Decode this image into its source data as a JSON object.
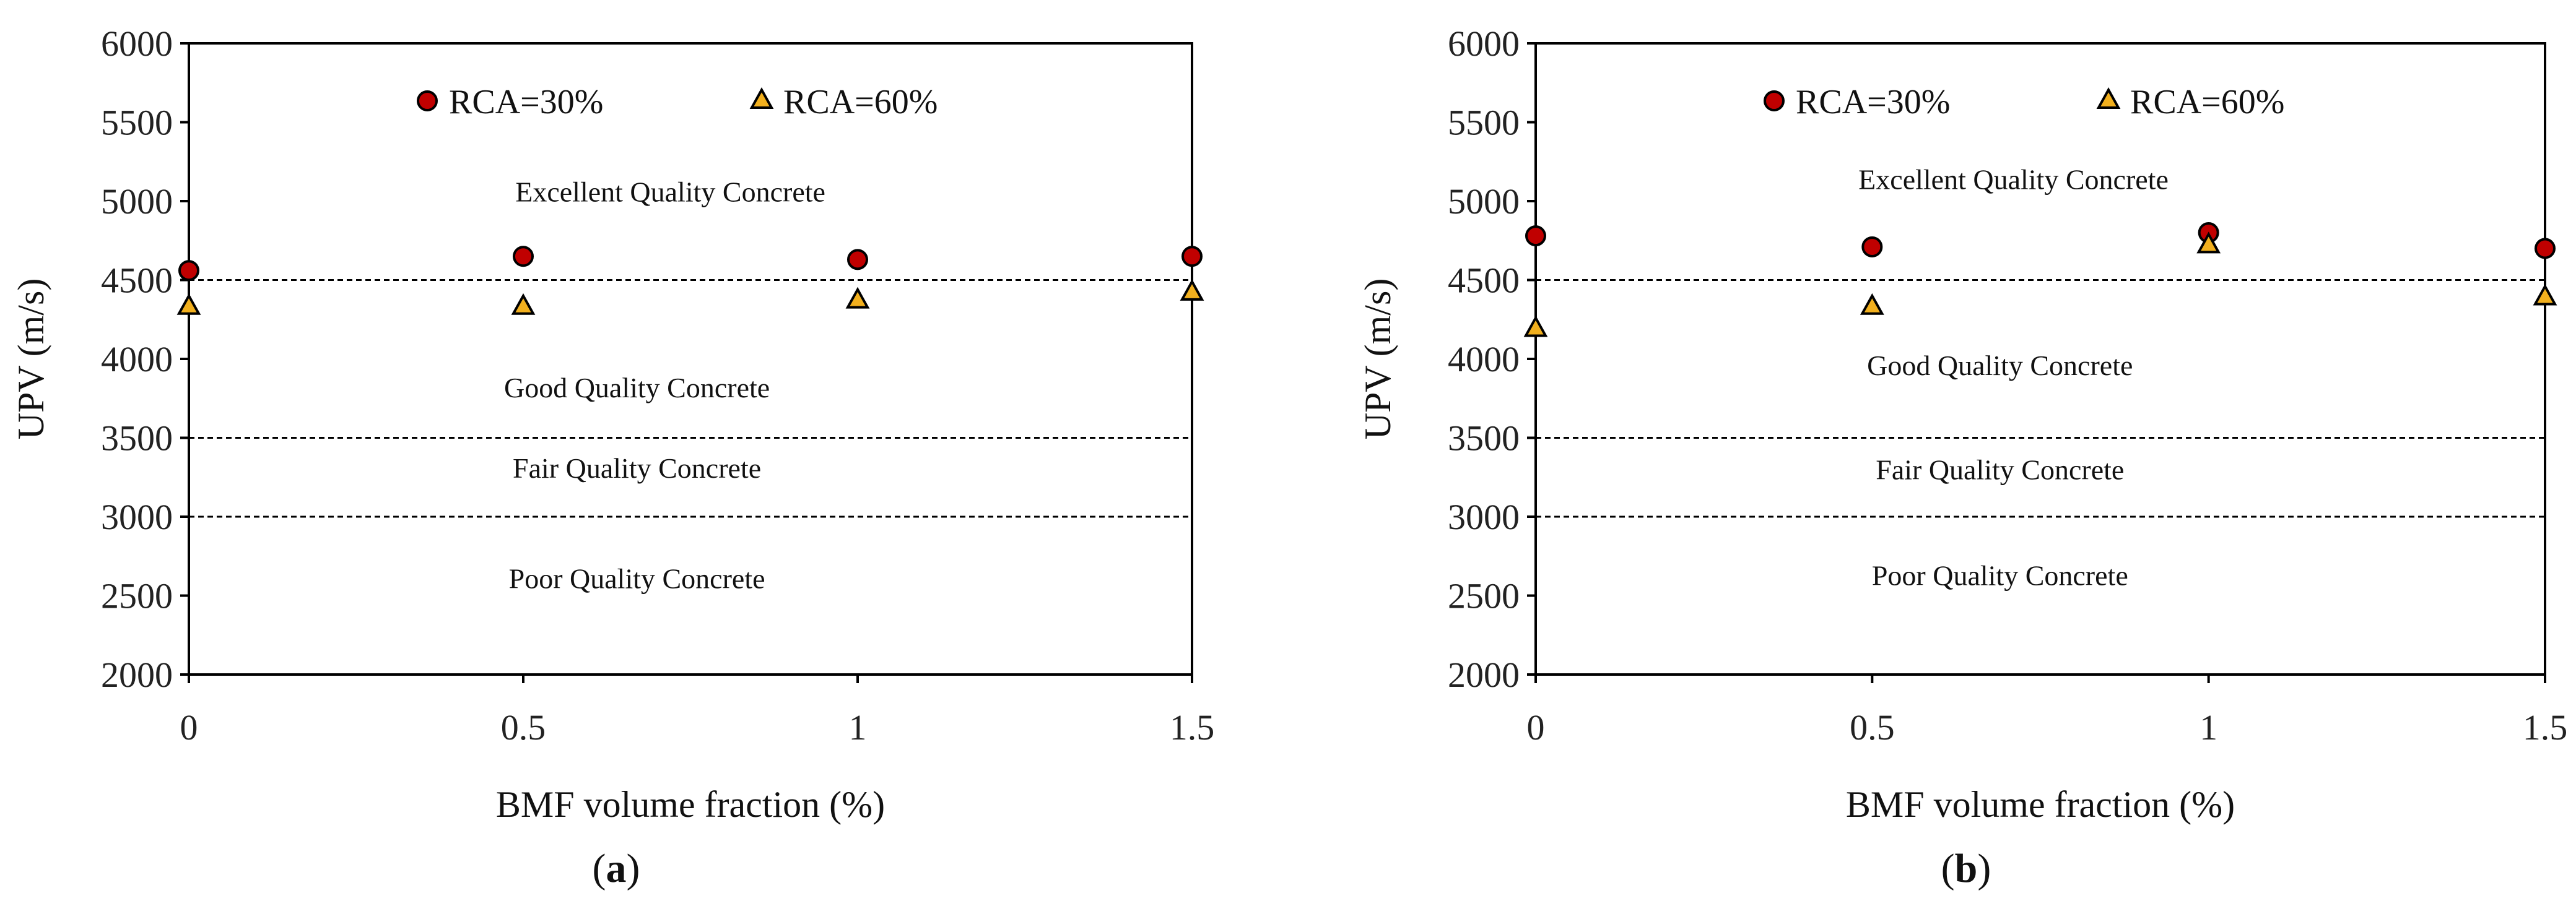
{
  "colors": {
    "rca30": "#c00000",
    "rca60": "#f2b01e",
    "marker_edge": "#000000",
    "axis": "#000000"
  },
  "chart_data": [
    {
      "type": "scatter",
      "panel_label": "a",
      "xlabel": "BMF volume fraction (%)",
      "ylabel": "UPV (m/s)",
      "xlim": [
        0,
        1.5
      ],
      "ylim": [
        2000,
        6000
      ],
      "xticks": [
        0,
        0.5,
        1,
        1.5
      ],
      "xtick_labels": [
        "0",
        "0.5",
        "1",
        "1.5"
      ],
      "yticks": [
        2000,
        2500,
        3000,
        3500,
        4000,
        4500,
        5000,
        5500,
        6000
      ],
      "ytick_labels": [
        "2000",
        "2500",
        "3000",
        "3500",
        "4000",
        "4500",
        "5000",
        "5500",
        "6000"
      ],
      "grid": false,
      "legend_position": "top",
      "series": [
        {
          "name": "RCA=30%",
          "marker": "circle",
          "x": [
            0,
            0.5,
            1,
            1.5
          ],
          "y": [
            4560,
            4650,
            4630,
            4650
          ]
        },
        {
          "name": "RCA=60%",
          "marker": "triangle",
          "x": [
            0,
            0.5,
            1,
            1.5
          ],
          "y": [
            4330,
            4330,
            4370,
            4420
          ]
        }
      ],
      "threshold_lines": [
        4500,
        3500,
        3000
      ],
      "zone_labels": [
        {
          "text": "Excellent Quality Concrete",
          "x": 0.72,
          "y": 5060
        },
        {
          "text": "Good Quality Concrete",
          "x": 0.67,
          "y": 3820
        },
        {
          "text": "Fair Quality Concrete",
          "x": 0.67,
          "y": 3310
        },
        {
          "text": "Poor Quality Concrete",
          "x": 0.67,
          "y": 2610
        }
      ]
    },
    {
      "type": "scatter",
      "panel_label": "b",
      "xlabel": "BMF volume fraction (%)",
      "ylabel": "UPV (m/s)",
      "xlim": [
        0,
        1.5
      ],
      "ylim": [
        2000,
        6000
      ],
      "xticks": [
        0,
        0.5,
        1,
        1.5
      ],
      "xtick_labels": [
        "0",
        "0.5",
        "1",
        "1.5"
      ],
      "yticks": [
        2000,
        2500,
        3000,
        3500,
        4000,
        4500,
        5000,
        5500,
        6000
      ],
      "ytick_labels": [
        "2000",
        "2500",
        "3000",
        "3500",
        "4000",
        "4500",
        "5000",
        "5500",
        "6000"
      ],
      "grid": false,
      "legend_position": "top",
      "series": [
        {
          "name": "RCA=30%",
          "marker": "circle",
          "x": [
            0,
            0.5,
            1,
            1.5
          ],
          "y": [
            4780,
            4710,
            4800,
            4700
          ]
        },
        {
          "name": "RCA=60%",
          "marker": "triangle",
          "x": [
            0,
            0.5,
            1,
            1.5
          ],
          "y": [
            4190,
            4330,
            4720,
            4390
          ]
        }
      ],
      "threshold_lines": [
        4500,
        3500,
        3000
      ],
      "zone_labels": [
        {
          "text": "Excellent Quality Concrete",
          "x": 0.71,
          "y": 5140
        },
        {
          "text": "Good Quality Concrete",
          "x": 0.69,
          "y": 3960
        },
        {
          "text": "Fair Quality Concrete",
          "x": 0.69,
          "y": 3300
        },
        {
          "text": "Poor Quality Concrete",
          "x": 0.69,
          "y": 2630
        }
      ]
    }
  ]
}
